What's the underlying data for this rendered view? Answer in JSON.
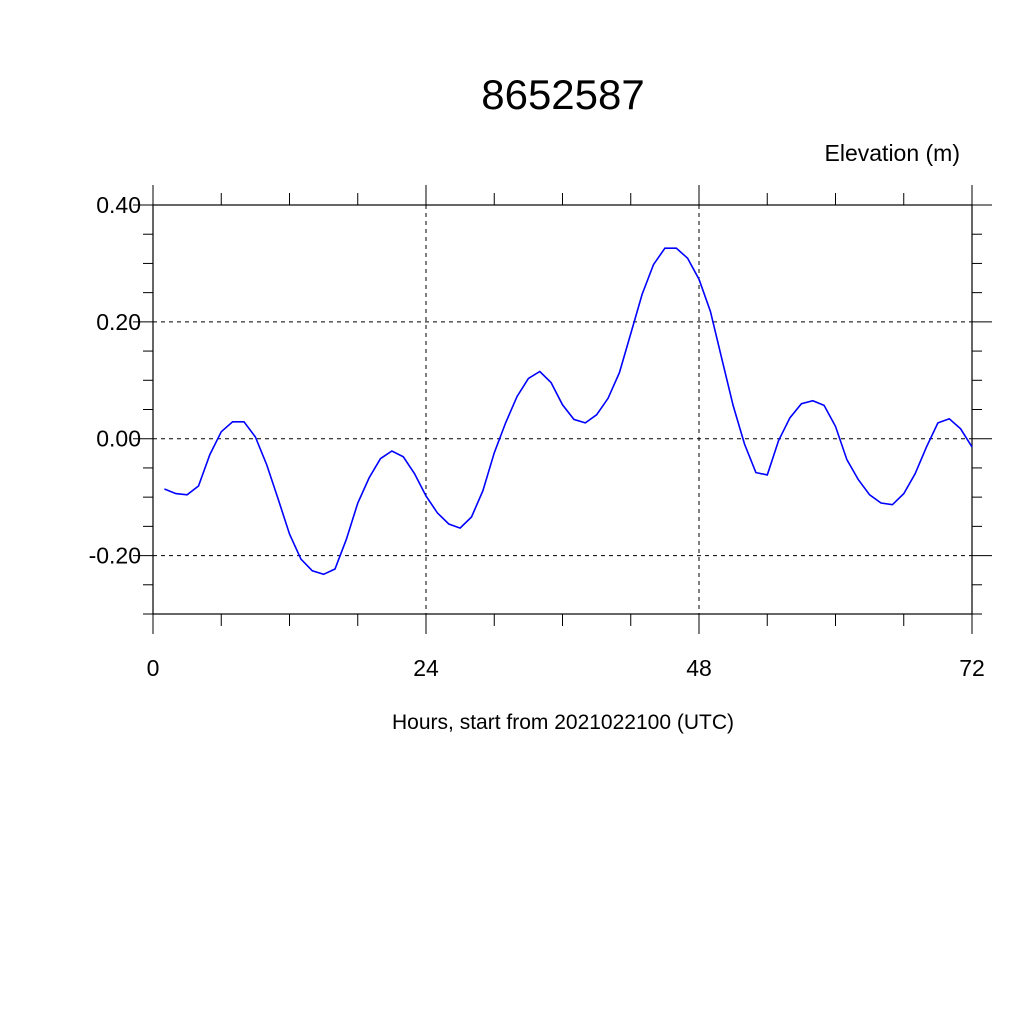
{
  "chart_data": {
    "type": "line",
    "title": "8652587",
    "ylabel": "Elevation (m)",
    "xlabel": "Hours, start from 2021022100 (UTC)",
    "xlim": [
      0,
      72
    ],
    "ylim": [
      -0.3,
      0.4
    ],
    "xticks": [
      0,
      24,
      48,
      72
    ],
    "xtick_labels": [
      "0",
      "24",
      "48",
      "72"
    ],
    "yticks": [
      0.4,
      0.2,
      0.0,
      -0.2
    ],
    "ytick_labels": [
      "0.40",
      "0.20",
      "0.00",
      "-0.20"
    ],
    "grid": true,
    "line_color": "#0000ff",
    "x": [
      1,
      2,
      3,
      4,
      5,
      6,
      7,
      8,
      9,
      10,
      11,
      12,
      13,
      14,
      15,
      16,
      17,
      18,
      19,
      20,
      21,
      22,
      23,
      24,
      25,
      26,
      27,
      28,
      29,
      30,
      31,
      32,
      33,
      34,
      35,
      36,
      37,
      38,
      39,
      40,
      41,
      42,
      43,
      44,
      45,
      46,
      47,
      48,
      49,
      50,
      51,
      52,
      53,
      54,
      55,
      56,
      57,
      58,
      59,
      60,
      61,
      62,
      63,
      64,
      65,
      66,
      67,
      68,
      69,
      70,
      71,
      72
    ],
    "values": [
      -0.086,
      -0.094,
      -0.096,
      -0.081,
      -0.027,
      0.012,
      0.029,
      0.029,
      0.003,
      -0.045,
      -0.103,
      -0.163,
      -0.206,
      -0.226,
      -0.232,
      -0.223,
      -0.172,
      -0.11,
      -0.067,
      -0.034,
      -0.021,
      -0.031,
      -0.06,
      -0.098,
      -0.127,
      -0.146,
      -0.153,
      -0.134,
      -0.089,
      -0.024,
      0.027,
      0.072,
      0.103,
      0.115,
      0.096,
      0.058,
      0.033,
      0.027,
      0.041,
      0.069,
      0.113,
      0.18,
      0.247,
      0.298,
      0.326,
      0.326,
      0.309,
      0.273,
      0.218,
      0.137,
      0.057,
      -0.009,
      -0.058,
      -0.062,
      -0.003,
      0.036,
      0.06,
      0.065,
      0.057,
      0.021,
      -0.036,
      -0.07,
      -0.096,
      -0.11,
      -0.113,
      -0.094,
      -0.06,
      -0.014,
      0.027,
      0.034,
      0.017,
      -0.014
    ]
  }
}
